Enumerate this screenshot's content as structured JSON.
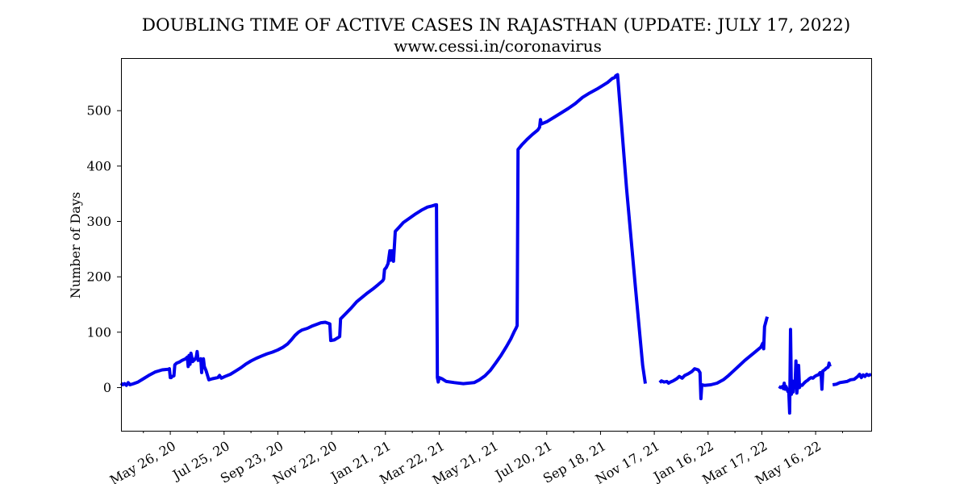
{
  "chart_data": {
    "type": "line",
    "title": "DOUBLING TIME OF ACTIVE CASES IN RAJASTHAN (UPDATE: JULY 17, 2022)",
    "subtitle": "www.cessi.in/coronavirus",
    "xlabel": "",
    "ylabel": "Number of Days",
    "xlim": [
      "2020-04-01",
      "2022-07-17"
    ],
    "ylim": [
      -78,
      595
    ],
    "yticks": [
      0,
      100,
      200,
      300,
      400,
      500
    ],
    "xticks": [
      {
        "date": "2020-05-26",
        "label": "May 26, 20"
      },
      {
        "date": "2020-07-25",
        "label": "Jul 25, 20"
      },
      {
        "date": "2020-09-23",
        "label": "Sep 23, 20"
      },
      {
        "date": "2020-11-22",
        "label": "Nov 22, 20"
      },
      {
        "date": "2021-01-21",
        "label": "Jan 21, 21"
      },
      {
        "date": "2021-03-22",
        "label": "Mar 22, 21"
      },
      {
        "date": "2021-05-21",
        "label": "May 21, 21"
      },
      {
        "date": "2021-07-20",
        "label": "Jul 20, 21"
      },
      {
        "date": "2021-09-18",
        "label": "Sep 18, 21"
      },
      {
        "date": "2021-11-17",
        "label": "Nov 17, 21"
      },
      {
        "date": "2022-01-16",
        "label": "Jan 16, 22"
      },
      {
        "date": "2022-03-17",
        "label": "Mar 17, 22"
      },
      {
        "date": "2022-05-16",
        "label": "May 16, 22"
      }
    ],
    "grid": false,
    "line_color": "#0000ee",
    "series": [
      {
        "segments": [
          [
            [
              "2020-04-01",
              8
            ],
            [
              "2020-04-03",
              5
            ],
            [
              "2020-04-05",
              7
            ],
            [
              "2020-04-07",
              4
            ],
            [
              "2020-04-09",
              9
            ],
            [
              "2020-04-11",
              5
            ],
            [
              "2020-04-15",
              7
            ],
            [
              "2020-04-20",
              10
            ],
            [
              "2020-04-26",
              16
            ],
            [
              "2020-05-02",
              22
            ],
            [
              "2020-05-09",
              28
            ],
            [
              "2020-05-17",
              32
            ],
            [
              "2020-05-24",
              33
            ],
            [
              "2020-05-25",
              34
            ],
            [
              "2020-05-26",
              18
            ],
            [
              "2020-05-27",
              18
            ],
            [
              "2020-05-28",
              20
            ],
            [
              "2020-05-30",
              21
            ],
            [
              "2020-05-31",
              41
            ],
            [
              "2020-06-02",
              44
            ],
            [
              "2020-06-05",
              46
            ],
            [
              "2020-06-08",
              49
            ],
            [
              "2020-06-12",
              52
            ],
            [
              "2020-06-14",
              55
            ],
            [
              "2020-06-15",
              38
            ],
            [
              "2020-06-16",
              58
            ],
            [
              "2020-06-17",
              42
            ],
            [
              "2020-06-18",
              62
            ],
            [
              "2020-06-20",
              47
            ],
            [
              "2020-06-22",
              50
            ],
            [
              "2020-06-24",
              55
            ],
            [
              "2020-06-25",
              65
            ],
            [
              "2020-06-26",
              49
            ],
            [
              "2020-06-28",
              50
            ],
            [
              "2020-06-29",
              52
            ],
            [
              "2020-06-30",
              27
            ],
            [
              "2020-07-01",
              51
            ],
            [
              "2020-07-02",
              52
            ],
            [
              "2020-07-03",
              38
            ],
            [
              "2020-07-05",
              30
            ],
            [
              "2020-07-08",
              14
            ],
            [
              "2020-07-12",
              16
            ],
            [
              "2020-07-18",
              18
            ],
            [
              "2020-07-20",
              22
            ],
            [
              "2020-07-22",
              17
            ],
            [
              "2020-07-26",
              20
            ],
            [
              "2020-08-01",
              24
            ],
            [
              "2020-08-07",
              30
            ],
            [
              "2020-08-13",
              36
            ],
            [
              "2020-08-18",
              42
            ],
            [
              "2020-08-24",
              48
            ],
            [
              "2020-08-30",
              53
            ],
            [
              "2020-09-05",
              57
            ],
            [
              "2020-09-11",
              61
            ],
            [
              "2020-09-17",
              64
            ],
            [
              "2020-09-23",
              68
            ],
            [
              "2020-09-29",
              73
            ],
            [
              "2020-10-04",
              79
            ],
            [
              "2020-10-08",
              86
            ],
            [
              "2020-10-12",
              94
            ],
            [
              "2020-10-16",
              100
            ],
            [
              "2020-10-20",
              104
            ],
            [
              "2020-10-26",
              107
            ],
            [
              "2020-10-31",
              111
            ],
            [
              "2020-11-05",
              114
            ],
            [
              "2020-11-10",
              117
            ],
            [
              "2020-11-15",
              118
            ],
            [
              "2020-11-20",
              115
            ],
            [
              "2020-11-21",
              85
            ],
            [
              "2020-11-25",
              86
            ],
            [
              "2020-11-29",
              90
            ],
            [
              "2020-12-01",
              92
            ],
            [
              "2020-12-02",
              124
            ],
            [
              "2020-12-08",
              134
            ],
            [
              "2020-12-14",
              144
            ],
            [
              "2020-12-20",
              155
            ],
            [
              "2020-12-26",
              163
            ],
            [
              "2021-01-01",
              171
            ],
            [
              "2021-01-07",
              178
            ],
            [
              "2021-01-13",
              186
            ],
            [
              "2021-01-18",
              193
            ],
            [
              "2021-01-19",
              196
            ],
            [
              "2021-01-20",
              213
            ],
            [
              "2021-01-22",
              217
            ],
            [
              "2021-01-24",
              224
            ],
            [
              "2021-01-26",
              247
            ],
            [
              "2021-01-27",
              230
            ],
            [
              "2021-01-28",
              247
            ],
            [
              "2021-01-30",
              228
            ],
            [
              "2021-02-01",
              282
            ],
            [
              "2021-02-05",
              289
            ],
            [
              "2021-02-10",
              298
            ],
            [
              "2021-02-17",
              306
            ],
            [
              "2021-02-24",
              314
            ],
            [
              "2021-03-03",
              321
            ],
            [
              "2021-03-09",
              326
            ],
            [
              "2021-03-14",
              328
            ],
            [
              "2021-03-18",
              330
            ],
            [
              "2021-03-19",
              330
            ],
            [
              "2021-03-20",
              18
            ],
            [
              "2021-03-21",
              10
            ],
            [
              "2021-03-22",
              18
            ],
            [
              "2021-03-25",
              16
            ],
            [
              "2021-03-30",
              11
            ],
            [
              "2021-04-08",
              9
            ],
            [
              "2021-04-18",
              7
            ],
            [
              "2021-04-30",
              9
            ],
            [
              "2021-05-06",
              14
            ],
            [
              "2021-05-12",
              21
            ],
            [
              "2021-05-18",
              31
            ],
            [
              "2021-05-24",
              44
            ],
            [
              "2021-05-30",
              58
            ],
            [
              "2021-06-05",
              74
            ],
            [
              "2021-06-10",
              88
            ],
            [
              "2021-06-14",
              102
            ],
            [
              "2021-06-16",
              108
            ],
            [
              "2021-06-17",
              112
            ],
            [
              "2021-06-18",
              430
            ],
            [
              "2021-06-22",
              438
            ],
            [
              "2021-06-28",
              448
            ],
            [
              "2021-07-04",
              457
            ],
            [
              "2021-07-10",
              465
            ],
            [
              "2021-07-12",
              470
            ],
            [
              "2021-07-13",
              484
            ],
            [
              "2021-07-14",
              476
            ],
            [
              "2021-07-20",
              480
            ],
            [
              "2021-07-28",
              488
            ],
            [
              "2021-08-05",
              496
            ],
            [
              "2021-08-13",
              504
            ],
            [
              "2021-08-21",
              513
            ],
            [
              "2021-08-29",
              524
            ],
            [
              "2021-09-06",
              532
            ],
            [
              "2021-09-14",
              539
            ],
            [
              "2021-09-20",
              545
            ],
            [
              "2021-09-26",
              551
            ],
            [
              "2021-10-01",
              558
            ],
            [
              "2021-10-04",
              560
            ],
            [
              "2021-10-05",
              563
            ],
            [
              "2021-10-07",
              565
            ],
            [
              "2021-10-17",
              360
            ],
            [
              "2021-10-27",
              180
            ],
            [
              "2021-11-04",
              40
            ],
            [
              "2021-11-07",
              7
            ]
          ],
          [
            [
              "2021-11-23",
              9
            ],
            [
              "2021-11-25",
              12
            ],
            [
              "2021-11-28",
              10
            ],
            [
              "2021-12-01",
              11
            ],
            [
              "2021-12-03",
              8
            ],
            [
              "2021-12-05",
              10
            ],
            [
              "2021-12-08",
              12
            ],
            [
              "2021-12-12",
              16
            ],
            [
              "2021-12-15",
              20
            ],
            [
              "2021-12-18",
              17
            ],
            [
              "2021-12-21",
              22
            ],
            [
              "2021-12-25",
              25
            ],
            [
              "2021-12-29",
              29
            ],
            [
              "2022-01-01",
              34
            ],
            [
              "2022-01-05",
              32
            ],
            [
              "2022-01-07",
              27
            ],
            [
              "2022-01-08",
              -20
            ],
            [
              "2022-01-09",
              5
            ],
            [
              "2022-01-12",
              4
            ],
            [
              "2022-01-19",
              5
            ],
            [
              "2022-01-26",
              8
            ],
            [
              "2022-02-02",
              14
            ],
            [
              "2022-02-08",
              22
            ],
            [
              "2022-02-14",
              31
            ],
            [
              "2022-02-20",
              40
            ],
            [
              "2022-02-26",
              49
            ],
            [
              "2022-03-04",
              57
            ],
            [
              "2022-03-10",
              65
            ],
            [
              "2022-03-16",
              73
            ],
            [
              "2022-03-18",
              80
            ],
            [
              "2022-03-19",
              70
            ],
            [
              "2022-03-20",
              110
            ],
            [
              "2022-03-23",
              128
            ]
          ],
          [
            [
              "2022-04-05",
              2
            ],
            [
              "2022-04-07",
              0
            ],
            [
              "2022-04-09",
              2
            ],
            [
              "2022-04-10",
              -2
            ],
            [
              "2022-04-11",
              8
            ],
            [
              "2022-04-12",
              -3
            ],
            [
              "2022-04-13",
              2
            ],
            [
              "2022-04-15",
              -7
            ],
            [
              "2022-04-16",
              -6
            ],
            [
              "2022-04-17",
              -46
            ],
            [
              "2022-04-18",
              105
            ],
            [
              "2022-04-19",
              -12
            ],
            [
              "2022-04-20",
              12
            ],
            [
              "2022-04-21",
              -8
            ],
            [
              "2022-04-22",
              10
            ],
            [
              "2022-04-23",
              5
            ],
            [
              "2022-04-24",
              48
            ],
            [
              "2022-04-25",
              -10
            ],
            [
              "2022-04-26",
              6
            ],
            [
              "2022-04-27",
              40
            ],
            [
              "2022-04-28",
              0
            ],
            [
              "2022-04-29",
              5
            ],
            [
              "2022-05-01",
              4
            ],
            [
              "2022-05-03",
              8
            ],
            [
              "2022-05-05",
              11
            ],
            [
              "2022-05-07",
              13
            ],
            [
              "2022-05-09",
              16
            ],
            [
              "2022-05-11",
              18
            ],
            [
              "2022-05-13",
              17
            ],
            [
              "2022-05-15",
              20
            ],
            [
              "2022-05-17",
              22
            ],
            [
              "2022-05-19",
              23
            ],
            [
              "2022-05-21",
              27
            ],
            [
              "2022-05-22",
              27
            ],
            [
              "2022-05-23",
              -3
            ],
            [
              "2022-05-24",
              30
            ],
            [
              "2022-05-26",
              32
            ],
            [
              "2022-05-28",
              35
            ],
            [
              "2022-05-30",
              37
            ],
            [
              "2022-05-31",
              44
            ],
            [
              "2022-06-01",
              38
            ]
          ],
          [
            [
              "2022-06-04",
              5
            ],
            [
              "2022-06-08",
              6
            ],
            [
              "2022-06-12",
              9
            ],
            [
              "2022-06-16",
              10
            ],
            [
              "2022-06-20",
              11
            ],
            [
              "2022-06-24",
              14
            ],
            [
              "2022-06-28",
              15
            ],
            [
              "2022-07-02",
              20
            ],
            [
              "2022-07-04",
              24
            ],
            [
              "2022-07-06",
              18
            ],
            [
              "2022-07-08",
              23
            ],
            [
              "2022-07-10",
              20
            ],
            [
              "2022-07-12",
              24
            ],
            [
              "2022-07-14",
              22
            ],
            [
              "2022-07-17",
              24
            ]
          ]
        ]
      }
    ]
  }
}
